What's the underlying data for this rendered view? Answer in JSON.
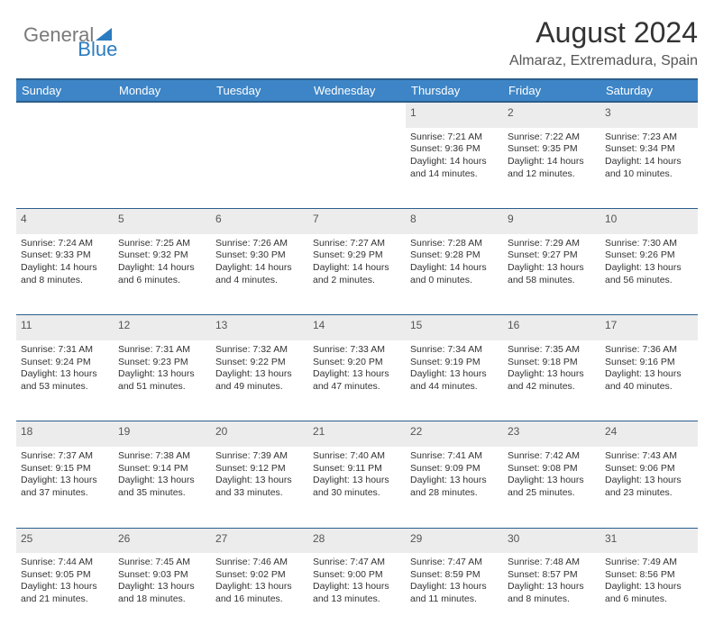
{
  "brand": {
    "part1": "General",
    "part2": "Blue"
  },
  "header": {
    "title": "August 2024",
    "subtitle": "Almaraz, Extremadura, Spain"
  },
  "style": {
    "accent_color": "#3d85c6",
    "header_border": "#2b5e8c",
    "daynum_bg": "#ececec",
    "text_color": "#333333",
    "muted_text": "#555555",
    "page_bg": "#ffffff",
    "title_fontsize": 32,
    "subtitle_fontsize": 16,
    "dayheader_fontsize": 13,
    "cell_fontsize": 10.5
  },
  "day_headers": [
    "Sunday",
    "Monday",
    "Tuesday",
    "Wednesday",
    "Thursday",
    "Friday",
    "Saturday"
  ],
  "weeks": [
    [
      null,
      null,
      null,
      null,
      {
        "n": "1",
        "sunrise": "Sunrise: 7:21 AM",
        "sunset": "Sunset: 9:36 PM",
        "daylight": "Daylight: 14 hours and 14 minutes."
      },
      {
        "n": "2",
        "sunrise": "Sunrise: 7:22 AM",
        "sunset": "Sunset: 9:35 PM",
        "daylight": "Daylight: 14 hours and 12 minutes."
      },
      {
        "n": "3",
        "sunrise": "Sunrise: 7:23 AM",
        "sunset": "Sunset: 9:34 PM",
        "daylight": "Daylight: 14 hours and 10 minutes."
      }
    ],
    [
      {
        "n": "4",
        "sunrise": "Sunrise: 7:24 AM",
        "sunset": "Sunset: 9:33 PM",
        "daylight": "Daylight: 14 hours and 8 minutes."
      },
      {
        "n": "5",
        "sunrise": "Sunrise: 7:25 AM",
        "sunset": "Sunset: 9:32 PM",
        "daylight": "Daylight: 14 hours and 6 minutes."
      },
      {
        "n": "6",
        "sunrise": "Sunrise: 7:26 AM",
        "sunset": "Sunset: 9:30 PM",
        "daylight": "Daylight: 14 hours and 4 minutes."
      },
      {
        "n": "7",
        "sunrise": "Sunrise: 7:27 AM",
        "sunset": "Sunset: 9:29 PM",
        "daylight": "Daylight: 14 hours and 2 minutes."
      },
      {
        "n": "8",
        "sunrise": "Sunrise: 7:28 AM",
        "sunset": "Sunset: 9:28 PM",
        "daylight": "Daylight: 14 hours and 0 minutes."
      },
      {
        "n": "9",
        "sunrise": "Sunrise: 7:29 AM",
        "sunset": "Sunset: 9:27 PM",
        "daylight": "Daylight: 13 hours and 58 minutes."
      },
      {
        "n": "10",
        "sunrise": "Sunrise: 7:30 AM",
        "sunset": "Sunset: 9:26 PM",
        "daylight": "Daylight: 13 hours and 56 minutes."
      }
    ],
    [
      {
        "n": "11",
        "sunrise": "Sunrise: 7:31 AM",
        "sunset": "Sunset: 9:24 PM",
        "daylight": "Daylight: 13 hours and 53 minutes."
      },
      {
        "n": "12",
        "sunrise": "Sunrise: 7:31 AM",
        "sunset": "Sunset: 9:23 PM",
        "daylight": "Daylight: 13 hours and 51 minutes."
      },
      {
        "n": "13",
        "sunrise": "Sunrise: 7:32 AM",
        "sunset": "Sunset: 9:22 PM",
        "daylight": "Daylight: 13 hours and 49 minutes."
      },
      {
        "n": "14",
        "sunrise": "Sunrise: 7:33 AM",
        "sunset": "Sunset: 9:20 PM",
        "daylight": "Daylight: 13 hours and 47 minutes."
      },
      {
        "n": "15",
        "sunrise": "Sunrise: 7:34 AM",
        "sunset": "Sunset: 9:19 PM",
        "daylight": "Daylight: 13 hours and 44 minutes."
      },
      {
        "n": "16",
        "sunrise": "Sunrise: 7:35 AM",
        "sunset": "Sunset: 9:18 PM",
        "daylight": "Daylight: 13 hours and 42 minutes."
      },
      {
        "n": "17",
        "sunrise": "Sunrise: 7:36 AM",
        "sunset": "Sunset: 9:16 PM",
        "daylight": "Daylight: 13 hours and 40 minutes."
      }
    ],
    [
      {
        "n": "18",
        "sunrise": "Sunrise: 7:37 AM",
        "sunset": "Sunset: 9:15 PM",
        "daylight": "Daylight: 13 hours and 37 minutes."
      },
      {
        "n": "19",
        "sunrise": "Sunrise: 7:38 AM",
        "sunset": "Sunset: 9:14 PM",
        "daylight": "Daylight: 13 hours and 35 minutes."
      },
      {
        "n": "20",
        "sunrise": "Sunrise: 7:39 AM",
        "sunset": "Sunset: 9:12 PM",
        "daylight": "Daylight: 13 hours and 33 minutes."
      },
      {
        "n": "21",
        "sunrise": "Sunrise: 7:40 AM",
        "sunset": "Sunset: 9:11 PM",
        "daylight": "Daylight: 13 hours and 30 minutes."
      },
      {
        "n": "22",
        "sunrise": "Sunrise: 7:41 AM",
        "sunset": "Sunset: 9:09 PM",
        "daylight": "Daylight: 13 hours and 28 minutes."
      },
      {
        "n": "23",
        "sunrise": "Sunrise: 7:42 AM",
        "sunset": "Sunset: 9:08 PM",
        "daylight": "Daylight: 13 hours and 25 minutes."
      },
      {
        "n": "24",
        "sunrise": "Sunrise: 7:43 AM",
        "sunset": "Sunset: 9:06 PM",
        "daylight": "Daylight: 13 hours and 23 minutes."
      }
    ],
    [
      {
        "n": "25",
        "sunrise": "Sunrise: 7:44 AM",
        "sunset": "Sunset: 9:05 PM",
        "daylight": "Daylight: 13 hours and 21 minutes."
      },
      {
        "n": "26",
        "sunrise": "Sunrise: 7:45 AM",
        "sunset": "Sunset: 9:03 PM",
        "daylight": "Daylight: 13 hours and 18 minutes."
      },
      {
        "n": "27",
        "sunrise": "Sunrise: 7:46 AM",
        "sunset": "Sunset: 9:02 PM",
        "daylight": "Daylight: 13 hours and 16 minutes."
      },
      {
        "n": "28",
        "sunrise": "Sunrise: 7:47 AM",
        "sunset": "Sunset: 9:00 PM",
        "daylight": "Daylight: 13 hours and 13 minutes."
      },
      {
        "n": "29",
        "sunrise": "Sunrise: 7:47 AM",
        "sunset": "Sunset: 8:59 PM",
        "daylight": "Daylight: 13 hours and 11 minutes."
      },
      {
        "n": "30",
        "sunrise": "Sunrise: 7:48 AM",
        "sunset": "Sunset: 8:57 PM",
        "daylight": "Daylight: 13 hours and 8 minutes."
      },
      {
        "n": "31",
        "sunrise": "Sunrise: 7:49 AM",
        "sunset": "Sunset: 8:56 PM",
        "daylight": "Daylight: 13 hours and 6 minutes."
      }
    ]
  ]
}
